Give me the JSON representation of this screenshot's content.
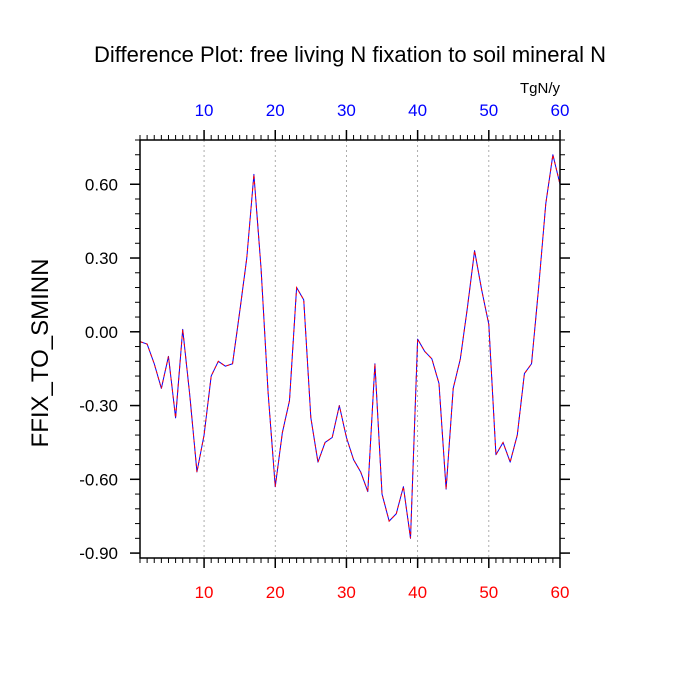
{
  "chart_data": {
    "type": "line",
    "title": "Difference Plot: free living N fixation to soil mineral N",
    "ylabel": "FFIX_TO_SMINN",
    "top_axis_units": "TgN/y",
    "xlim": [
      1,
      60
    ],
    "ylim": [
      -0.92,
      0.78
    ],
    "x_ticks": [
      10,
      20,
      30,
      40,
      50,
      60
    ],
    "y_ticks": [
      0.6,
      0.3,
      0.0,
      -0.3,
      -0.6,
      -0.9
    ],
    "y_tick_labels": [
      "0.60",
      "0.30",
      "0.00",
      "-0.30",
      "-0.60",
      "-0.90"
    ],
    "bottom_tick_color": "#ff0000",
    "top_tick_color": "#0000ff",
    "grid_x": true,
    "series": [
      {
        "line_colors": [
          "#0000ff",
          "#ff0000"
        ],
        "x": [
          1,
          2,
          3,
          4,
          5,
          6,
          7,
          8,
          9,
          10,
          11,
          12,
          13,
          14,
          15,
          16,
          17,
          18,
          19,
          20,
          21,
          22,
          23,
          24,
          25,
          26,
          27,
          28,
          29,
          30,
          31,
          32,
          33,
          34,
          35,
          36,
          37,
          38,
          39,
          40,
          41,
          42,
          43,
          44,
          45,
          46,
          47,
          48,
          49,
          50,
          51,
          52,
          53,
          54,
          55,
          56,
          57,
          58,
          59,
          60
        ],
        "values": [
          -0.04,
          -0.05,
          -0.13,
          -0.23,
          -0.1,
          -0.35,
          0.01,
          -0.26,
          -0.57,
          -0.42,
          -0.18,
          -0.12,
          -0.14,
          -0.13,
          0.08,
          0.3,
          0.64,
          0.26,
          -0.25,
          -0.63,
          -0.41,
          -0.28,
          0.18,
          0.13,
          -0.35,
          -0.53,
          -0.45,
          -0.43,
          -0.3,
          -0.43,
          -0.52,
          -0.57,
          -0.65,
          -0.13,
          -0.66,
          -0.77,
          -0.74,
          -0.63,
          -0.84,
          -0.03,
          -0.08,
          -0.11,
          -0.21,
          -0.64,
          -0.23,
          -0.11,
          0.1,
          0.33,
          0.17,
          0.03,
          -0.5,
          -0.45,
          -0.53,
          -0.42,
          -0.17,
          -0.13,
          0.18,
          0.52,
          0.72,
          0.6
        ]
      }
    ]
  }
}
